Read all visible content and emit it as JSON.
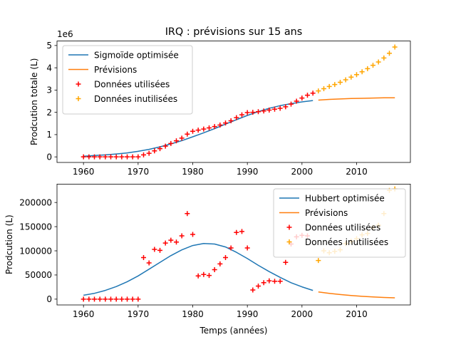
{
  "figure": {
    "title": "IRQ : prévisions sur 15 ans"
  },
  "colors": {
    "fit": "#1f77b4",
    "forecast": "#ff7f0e",
    "used": "#ff0000",
    "unused": "#ffa500"
  },
  "chart_data": [
    {
      "type": "line",
      "title": "IRQ : prévisions sur 15 ans",
      "xlabel": "",
      "ylabel": "Prodcution totale (L)",
      "offset_label": "1e6",
      "xlim": [
        1955.15,
        2019.85
      ],
      "ylim": [
        -0.25,
        5.2
      ],
      "xticks": [
        1960,
        1970,
        1980,
        1990,
        2000,
        2010
      ],
      "xtick_labels": [
        "1960",
        "1970",
        "1980",
        "1990",
        "2000",
        "2010"
      ],
      "yticks": [
        0,
        1,
        2,
        3,
        4,
        5
      ],
      "ytick_labels": [
        "0",
        "1",
        "2",
        "3",
        "4",
        "5"
      ],
      "legend": {
        "position": "top-left",
        "entries": [
          {
            "label": "Sigmoïde optimisée",
            "kind": "line",
            "color": "#1f77b4"
          },
          {
            "label": "Prévisions",
            "kind": "line",
            "color": "#ff7f0e"
          },
          {
            "label": "Données utilisées",
            "kind": "plus",
            "color": "#ff0000"
          },
          {
            "label": "Données inutilisées",
            "kind": "plus",
            "color": "#ffa500"
          }
        ]
      },
      "series": [
        {
          "name": "Sigmoïde optimisée",
          "kind": "line",
          "color": "#1f77b4",
          "x": [
            1960,
            1962,
            1964,
            1966,
            1968,
            1970,
            1972,
            1974,
            1976,
            1978,
            1980,
            1982,
            1984,
            1986,
            1988,
            1990,
            1992,
            1994,
            1996,
            1998,
            2000,
            2002
          ],
          "y": [
            0.03,
            0.06,
            0.09,
            0.13,
            0.18,
            0.25,
            0.34,
            0.45,
            0.58,
            0.73,
            0.9,
            1.08,
            1.27,
            1.47,
            1.67,
            1.86,
            2.03,
            2.18,
            2.3,
            2.39,
            2.47,
            2.53
          ]
        },
        {
          "name": "Prévisions",
          "kind": "line",
          "color": "#ff7f0e",
          "x": [
            2003,
            2005,
            2007,
            2009,
            2011,
            2013,
            2015,
            2017
          ],
          "y": [
            2.55,
            2.58,
            2.6,
            2.62,
            2.63,
            2.64,
            2.65,
            2.65
          ]
        },
        {
          "name": "Données utilisées",
          "kind": "plus",
          "color": "#ff0000",
          "x": [
            1960,
            1961,
            1962,
            1963,
            1964,
            1965,
            1966,
            1967,
            1968,
            1969,
            1970,
            1971,
            1972,
            1973,
            1974,
            1975,
            1976,
            1977,
            1978,
            1979,
            1980,
            1981,
            1982,
            1983,
            1984,
            1985,
            1986,
            1987,
            1988,
            1989,
            1990,
            1991,
            1992,
            1993,
            1994,
            1995,
            1996,
            1997,
            1998,
            1999,
            2000,
            2001,
            2002
          ],
          "y": [
            0,
            0,
            0,
            0,
            0,
            0,
            0,
            0,
            0,
            0,
            0,
            0.09,
            0.16,
            0.27,
            0.37,
            0.48,
            0.6,
            0.72,
            0.84,
            1.02,
            1.15,
            1.2,
            1.25,
            1.3,
            1.36,
            1.43,
            1.52,
            1.62,
            1.76,
            1.89,
            1.99,
            2.0,
            2.03,
            2.06,
            2.1,
            2.14,
            2.18,
            2.25,
            2.37,
            2.5,
            2.64,
            2.77,
            2.86
          ]
        },
        {
          "name": "Données inutilisées",
          "kind": "plus",
          "color": "#ffa500",
          "x": [
            2003,
            2004,
            2005,
            2006,
            2007,
            2008,
            2009,
            2010,
            2011,
            2012,
            2013,
            2014,
            2015,
            2016,
            2017
          ],
          "y": [
            2.96,
            3.06,
            3.16,
            3.25,
            3.35,
            3.46,
            3.58,
            3.69,
            3.82,
            3.96,
            4.11,
            4.26,
            4.44,
            4.65,
            4.93
          ]
        }
      ]
    },
    {
      "type": "line",
      "title": "",
      "xlabel": "Temps (années)",
      "ylabel": "Prodcution (L)",
      "xlim": [
        1955.15,
        2019.85
      ],
      "ylim": [
        -12000,
        238000
      ],
      "xticks": [
        1960,
        1970,
        1980,
        1990,
        2000,
        2010
      ],
      "xtick_labels": [
        "1960",
        "1970",
        "1980",
        "1990",
        "2000",
        "2010"
      ],
      "yticks": [
        0,
        50000,
        100000,
        150000,
        200000
      ],
      "ytick_labels": [
        "0",
        "50000",
        "100000",
        "150000",
        "200000"
      ],
      "legend": {
        "position": "top-right",
        "entries": [
          {
            "label": "Hubbert optimisée",
            "kind": "line",
            "color": "#1f77b4"
          },
          {
            "label": "Prévisions",
            "kind": "line",
            "color": "#ff7f0e"
          },
          {
            "label": "Données utilisées",
            "kind": "plus",
            "color": "#ff0000"
          },
          {
            "label": "Données inutilisées",
            "kind": "plus",
            "color": "#ffa500"
          }
        ]
      },
      "series": [
        {
          "name": "Hubbert optimisée",
          "kind": "line",
          "color": "#1f77b4",
          "x": [
            1960,
            1962,
            1964,
            1966,
            1968,
            1970,
            1972,
            1974,
            1976,
            1978,
            1980,
            1982,
            1984,
            1986,
            1988,
            1990,
            1992,
            1994,
            1996,
            1998,
            2000,
            2002
          ],
          "y": [
            8000,
            12000,
            18000,
            26000,
            36000,
            48000,
            62000,
            76000,
            90000,
            102000,
            111000,
            115000,
            114000,
            108000,
            97000,
            84000,
            70000,
            57000,
            45000,
            34000,
            25500,
            18000
          ]
        },
        {
          "name": "Prévisions",
          "kind": "line",
          "color": "#ff7f0e",
          "x": [
            2003,
            2005,
            2007,
            2009,
            2011,
            2013,
            2015,
            2017
          ],
          "y": [
            15000,
            12000,
            9500,
            7500,
            5800,
            4500,
            3500,
            2700
          ]
        },
        {
          "name": "Données utilisées",
          "kind": "plus",
          "color": "#ff0000",
          "x": [
            1960,
            1961,
            1962,
            1963,
            1964,
            1965,
            1966,
            1967,
            1968,
            1969,
            1970,
            1971,
            1972,
            1973,
            1974,
            1975,
            1976,
            1977,
            1978,
            1979,
            1980,
            1981,
            1982,
            1983,
            1984,
            1985,
            1986,
            1987,
            1988,
            1989,
            1990,
            1991,
            1992,
            1993,
            1994,
            1995,
            1996,
            1997,
            1998,
            1999,
            2000,
            2001,
            2002
          ],
          "y": [
            0,
            0,
            0,
            0,
            0,
            0,
            0,
            0,
            0,
            0,
            0,
            86000,
            75000,
            103000,
            101000,
            116000,
            122000,
            118000,
            131000,
            177000,
            134000,
            48000,
            51000,
            49000,
            61000,
            73000,
            86000,
            106000,
            138000,
            140000,
            106000,
            19000,
            27000,
            34000,
            38000,
            37000,
            37000,
            76000,
            114000,
            129000,
            132000,
            131000,
            null
          ]
        },
        {
          "name": "Données inutilisées",
          "kind": "plus",
          "color": "#ffa500",
          "x": [
            2003,
            2004,
            2005,
            2006,
            2007,
            2008,
            2009,
            2010,
            2011,
            2012,
            2013,
            2014,
            2015,
            2016,
            2017
          ],
          "y": [
            80000,
            100000,
            96000,
            99000,
            102000,
            115000,
            120000,
            125000,
            133000,
            136000,
            148000,
            153000,
            177000,
            225000,
            228000
          ]
        }
      ]
    }
  ]
}
